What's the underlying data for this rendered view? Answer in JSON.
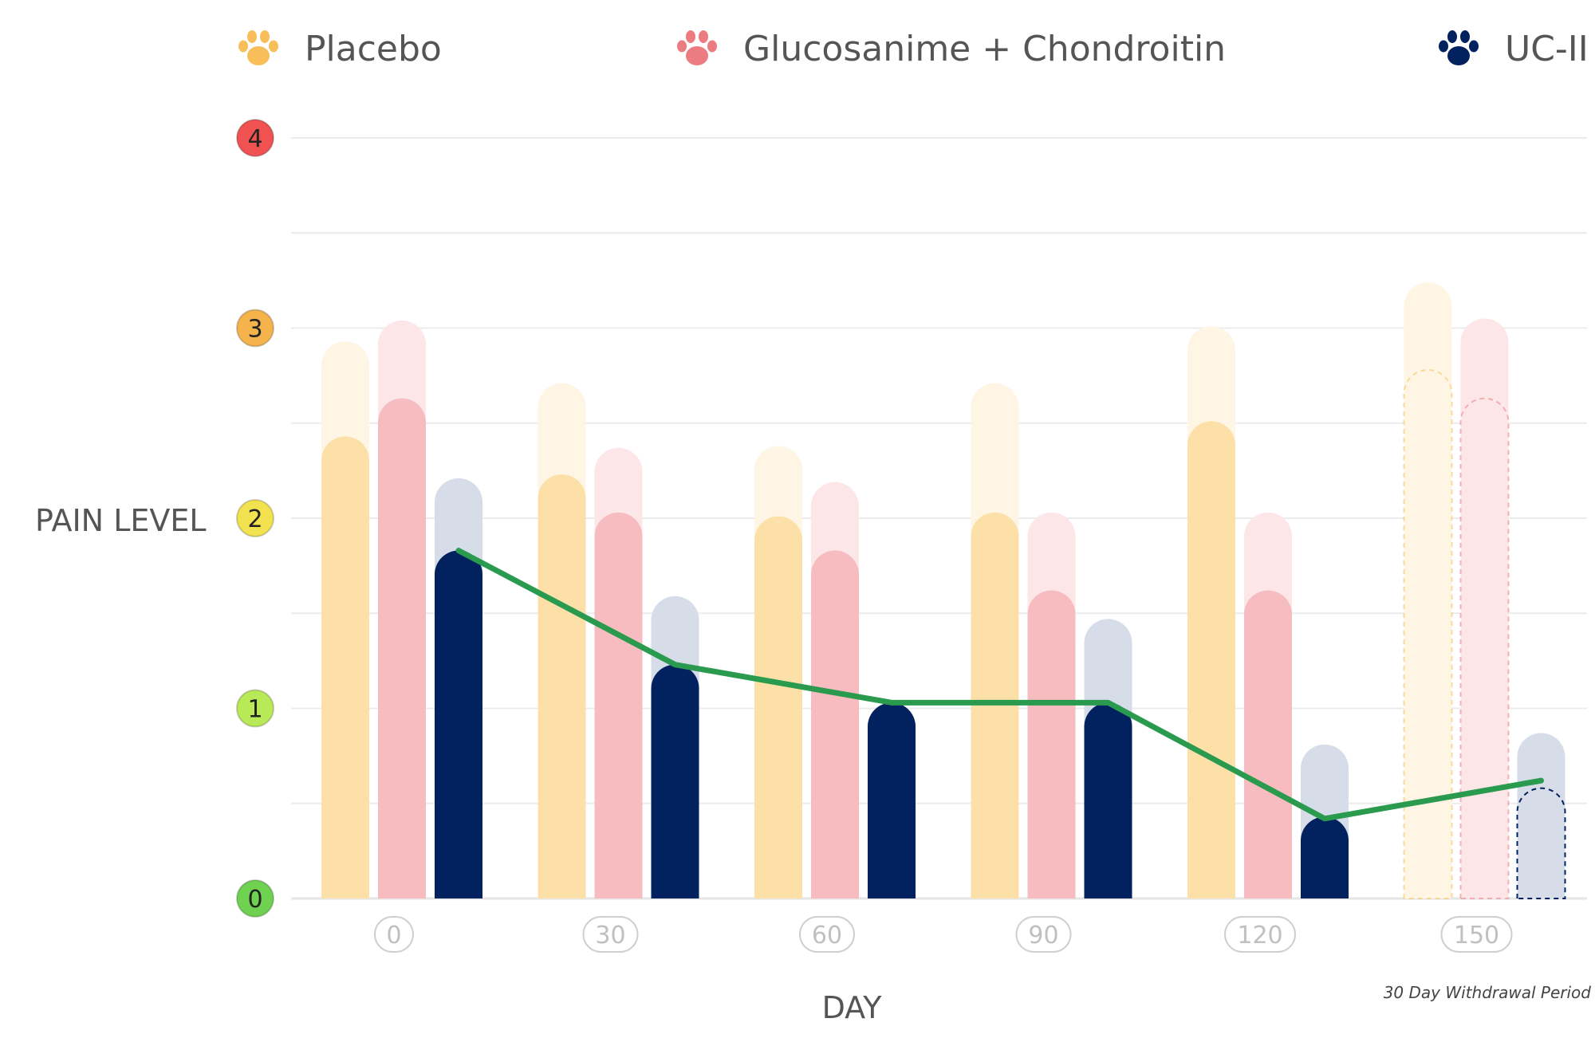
{
  "chart_data": {
    "type": "bar",
    "xlabel": "DAY",
    "ylabel": "PAIN LEVEL",
    "ylim": [
      0,
      4
    ],
    "grid": true,
    "legend_position": "top",
    "y_level_labels": [
      "0",
      "1",
      "2",
      "3",
      "4"
    ],
    "y_level_colors": [
      "#6fd150",
      "#b8ea58",
      "#f2e250",
      "#f5b34c",
      "#f05252"
    ],
    "categories": [
      "0",
      "30",
      "60",
      "90",
      "120",
      "150"
    ],
    "annotation": "30 Day Withdrawal Period",
    "series": [
      {
        "name": "Placebo",
        "color": "#fce0a8",
        "light_color": "#fef5e4",
        "icon": "paw-icon",
        "icon_color": "#f7be5a",
        "values": [
          2.43,
          2.23,
          2.01,
          2.03,
          2.51,
          2.78
        ],
        "upper_values": [
          2.93,
          2.71,
          2.38,
          2.71,
          3.01,
          3.24
        ]
      },
      {
        "name": "Glucosanime + Chondroitin",
        "color": "#f6bcbf",
        "light_color": "#fce6e8",
        "icon": "paw-icon",
        "icon_color": "#ec7c82",
        "values": [
          2.63,
          2.03,
          1.83,
          1.62,
          1.62,
          2.63
        ],
        "upper_values": [
          3.04,
          2.37,
          2.19,
          2.03,
          2.03,
          3.05
        ]
      },
      {
        "name": "UC-II",
        "color": "#02215f",
        "light_color": "#d6dde8",
        "icon": "paw-icon",
        "icon_color": "#02215f",
        "values": [
          1.83,
          1.23,
          1.03,
          1.03,
          0.43,
          0.58
        ],
        "upper_values": [
          2.21,
          1.59,
          1.03,
          1.47,
          0.81,
          0.87
        ]
      }
    ],
    "trend_line": {
      "series": "UC-II",
      "color": "#2a9a4f",
      "values": [
        1.83,
        1.23,
        1.03,
        1.03,
        0.42,
        0.62
      ]
    },
    "withdrawal_category": "150"
  }
}
